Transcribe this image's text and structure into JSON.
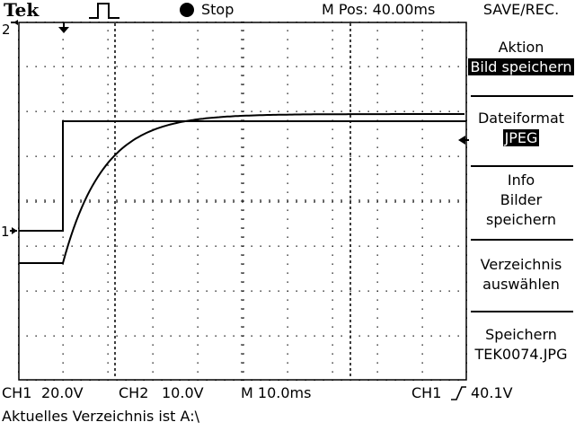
{
  "header": {
    "brand": "Tek",
    "run_state": "Stop",
    "horizontal_position": "M Pos: 40.00ms",
    "menu_title": "SAVE/REC."
  },
  "markers": {
    "channel2": "2",
    "channel1": "1"
  },
  "menu": {
    "action": {
      "label": "Aktion",
      "value": "Bild speichern"
    },
    "file_format": {
      "label": "Dateiformat",
      "value": "JPEG"
    },
    "info": {
      "line1": "Info",
      "line2": "Bilder",
      "line3": "speichern"
    },
    "select_dir": {
      "line1": "Verzeichnis",
      "line2": "auswählen"
    },
    "save": {
      "line1": "Speichern",
      "line2": "TEK0074.JPG"
    }
  },
  "status": {
    "ch1_label": "CH1",
    "ch1_scale": "20.0V",
    "ch2_label": "CH2",
    "ch2_scale": "10.0V",
    "timebase": "M 10.0ms",
    "trigger_source": "CH1",
    "trigger_level": "40.1V",
    "message": "Aktuelles Verzeichnis ist A:\\"
  },
  "colors": {
    "background": "#ffffff",
    "foreground": "#000000"
  }
}
